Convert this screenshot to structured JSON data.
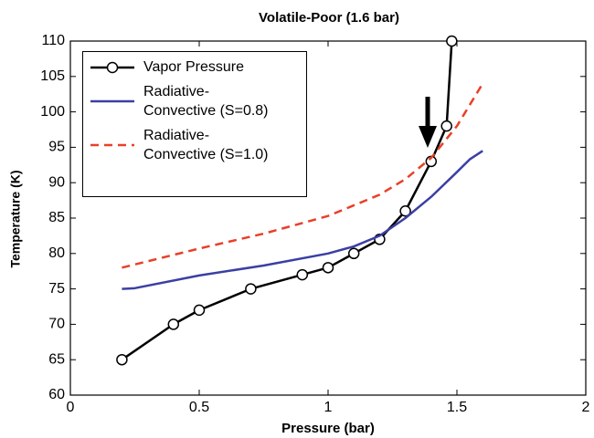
{
  "chart_data": {
    "type": "line",
    "title": "Volatile-Poor (1.6 bar)",
    "xlabel": "Pressure (bar)",
    "ylabel": "Temperature (K)",
    "xlim": [
      0,
      2
    ],
    "xticks": [
      0,
      0.5,
      1,
      1.5,
      2
    ],
    "ylim": [
      60,
      110
    ],
    "yticks": [
      60,
      65,
      70,
      75,
      80,
      85,
      90,
      95,
      100,
      105,
      110
    ],
    "legend": "upper left",
    "series": [
      {
        "name": "Vapor Pressure",
        "color": "#000000",
        "dashed": false,
        "markers": true,
        "x": [
          0.2,
          0.4,
          0.5,
          0.7,
          0.9,
          1.0,
          1.1,
          1.2,
          1.3,
          1.4,
          1.46,
          1.48
        ],
        "values": [
          65,
          70,
          72,
          75,
          77,
          78,
          80,
          82,
          86,
          93,
          98,
          110
        ]
      },
      {
        "name": "Radiative-\nConvective (S=0.8)",
        "color": "#3b3fa3",
        "dashed": false,
        "markers": false,
        "x": [
          0.2,
          0.25,
          0.5,
          0.75,
          1.0,
          1.1,
          1.2,
          1.3,
          1.4,
          1.5,
          1.55,
          1.6
        ],
        "values": [
          75,
          75.1,
          76.9,
          78.3,
          80,
          81,
          82.5,
          85,
          88,
          91.5,
          93.3,
          94.5
        ]
      },
      {
        "name": "Radiative-\nConvective (S=1.0)",
        "color": "#e8402a",
        "dashed": true,
        "markers": false,
        "x": [
          0.2,
          0.5,
          0.75,
          1.0,
          1.2,
          1.3,
          1.4,
          1.5,
          1.6
        ],
        "values": [
          78,
          80.7,
          82.8,
          85.3,
          88.3,
          90.5,
          93.5,
          98,
          104
        ]
      }
    ]
  }
}
